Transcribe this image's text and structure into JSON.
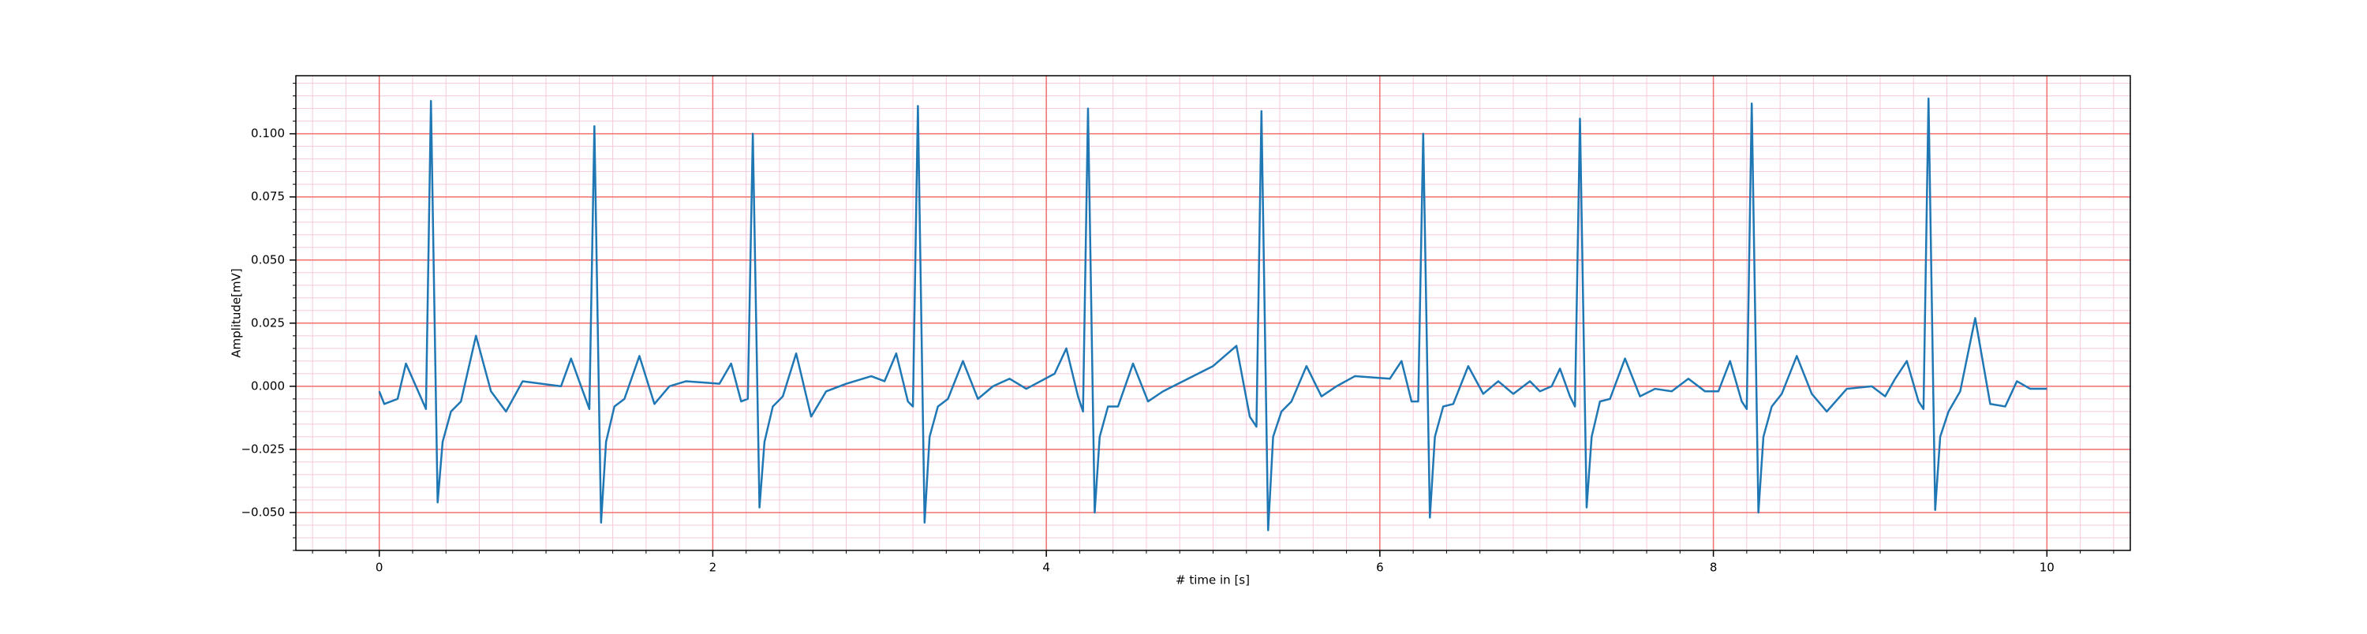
{
  "chart_data": {
    "type": "line",
    "xlabel": "# time in [s]",
    "ylabel": "Amplitude[mV]",
    "color": "#1f77b4",
    "xlim": [
      -0.5,
      10.5
    ],
    "ylim": [
      -0.065,
      0.123
    ],
    "xticks": [
      0,
      2,
      4,
      6,
      8,
      10
    ],
    "yticks": [
      {
        "value": -0.05,
        "label": "−0.050"
      },
      {
        "value": -0.025,
        "label": "−0.025"
      },
      {
        "value": 0,
        "label": "0.000"
      },
      {
        "value": 0.025,
        "label": "0.025"
      },
      {
        "value": 0.05,
        "label": "0.050"
      },
      {
        "value": 0.075,
        "label": "0.075"
      },
      {
        "value": 0.1,
        "label": "0.100"
      }
    ],
    "grid": true,
    "grid_color": "#f07070",
    "minor_grid": {
      "xstep": 0.2,
      "ystep": 0.005,
      "color": "#f8c8dc"
    },
    "x": [
      0,
      0.03,
      0.11,
      0.16,
      0.22,
      0.28,
      0.31,
      0.35,
      0.38,
      0.43,
      0.49,
      0.58,
      0.67,
      0.76,
      0.86,
      1.09,
      1.15,
      1.21,
      1.26,
      1.29,
      1.33,
      1.36,
      1.41,
      1.47,
      1.56,
      1.65,
      1.74,
      1.84,
      2.04,
      2.11,
      2.17,
      2.21,
      2.24,
      2.28,
      2.31,
      2.36,
      2.42,
      2.5,
      2.59,
      2.68,
      2.8,
      2.95,
      3.03,
      3.1,
      3.17,
      3.2,
      3.23,
      3.27,
      3.3,
      3.35,
      3.41,
      3.5,
      3.59,
      3.68,
      3.78,
      3.88,
      4.05,
      4.12,
      4.19,
      4.22,
      4.25,
      4.29,
      4.32,
      4.37,
      4.43,
      4.52,
      4.61,
      4.7,
      4.85,
      5.0,
      5.14,
      5.22,
      5.26,
      5.29,
      5.33,
      5.36,
      5.41,
      5.47,
      5.56,
      5.65,
      5.74,
      5.85,
      6.06,
      6.13,
      6.19,
      6.23,
      6.26,
      6.3,
      6.33,
      6.38,
      6.44,
      6.53,
      6.62,
      6.71,
      6.8,
      6.9,
      6.96,
      7.03,
      7.08,
      7.14,
      7.17,
      7.2,
      7.24,
      7.27,
      7.32,
      7.38,
      7.47,
      7.56,
      7.65,
      7.75,
      7.85,
      7.95,
      8.03,
      8.1,
      8.17,
      8.2,
      8.23,
      8.27,
      8.3,
      8.35,
      8.41,
      8.5,
      8.59,
      8.68,
      8.8,
      8.95,
      9.03,
      9.09,
      9.16,
      9.23,
      9.26,
      9.29,
      9.33,
      9.36,
      9.41,
      9.48,
      9.57,
      9.66,
      9.75,
      9.82,
      9.9,
      10.0
    ],
    "values": [
      -0.002,
      -0.007,
      -0.005,
      0.009,
      0.0,
      -0.009,
      0.113,
      -0.046,
      -0.022,
      -0.01,
      -0.006,
      0.02,
      -0.002,
      -0.01,
      0.002,
      0.0,
      0.011,
      0.0,
      -0.009,
      0.103,
      -0.054,
      -0.022,
      -0.008,
      -0.005,
      0.012,
      -0.007,
      0.0,
      0.002,
      0.001,
      0.009,
      -0.006,
      -0.005,
      0.1,
      -0.048,
      -0.022,
      -0.008,
      -0.004,
      0.013,
      -0.012,
      -0.002,
      0.001,
      0.004,
      0.002,
      0.013,
      -0.006,
      -0.008,
      0.111,
      -0.054,
      -0.02,
      -0.008,
      -0.005,
      0.01,
      -0.005,
      0.0,
      0.003,
      -0.001,
      0.005,
      0.015,
      -0.004,
      -0.01,
      0.11,
      -0.05,
      -0.02,
      -0.008,
      -0.008,
      0.009,
      -0.006,
      -0.002,
      0.003,
      0.008,
      0.016,
      -0.012,
      -0.016,
      0.109,
      -0.057,
      -0.02,
      -0.01,
      -0.006,
      0.008,
      -0.004,
      0.0,
      0.004,
      0.003,
      0.01,
      -0.006,
      -0.006,
      0.1,
      -0.052,
      -0.02,
      -0.008,
      -0.007,
      0.008,
      -0.003,
      0.002,
      -0.003,
      0.002,
      -0.002,
      0.0,
      0.007,
      -0.004,
      -0.008,
      0.106,
      -0.048,
      -0.02,
      -0.006,
      -0.005,
      0.011,
      -0.004,
      -0.001,
      -0.002,
      0.003,
      -0.002,
      -0.002,
      0.01,
      -0.006,
      -0.009,
      0.112,
      -0.05,
      -0.02,
      -0.008,
      -0.003,
      0.012,
      -0.003,
      -0.01,
      -0.001,
      0.0,
      -0.004,
      0.003,
      0.01,
      -0.006,
      -0.009,
      0.114,
      -0.049,
      -0.02,
      -0.01,
      -0.002,
      0.027,
      -0.007,
      -0.008,
      0.002,
      -0.001,
      -0.001
    ]
  }
}
